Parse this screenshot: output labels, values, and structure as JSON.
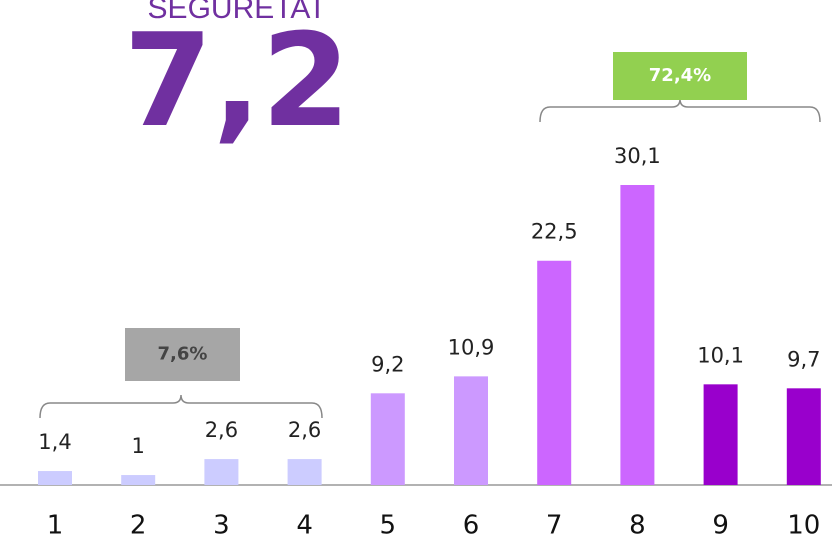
{
  "chart_data": {
    "type": "bar",
    "title": "SEGURETAT",
    "subtitle": "7,2",
    "categories": [
      "1",
      "2",
      "3",
      "4",
      "5",
      "6",
      "7",
      "8",
      "9",
      "10"
    ],
    "values": [
      1.4,
      1,
      2.6,
      2.6,
      9.2,
      10.9,
      22.5,
      30.1,
      10.1,
      9.7
    ],
    "value_labels": [
      "1,4",
      "1",
      "2,6",
      "2,6",
      "9,2",
      "10,9",
      "22,5",
      "30,1",
      "10,1",
      "9,7"
    ],
    "colors": [
      "#ccccff",
      "#ccccff",
      "#ccccff",
      "#ccccff",
      "#cc99ff",
      "#cc99ff",
      "#cc66ff",
      "#cc66ff",
      "#9900cc",
      "#9900cc"
    ],
    "annotations": [
      {
        "text": "7,6%",
        "color": "#a6a6a6"
      },
      {
        "text": "72,4%",
        "color": "#92d050"
      }
    ]
  }
}
